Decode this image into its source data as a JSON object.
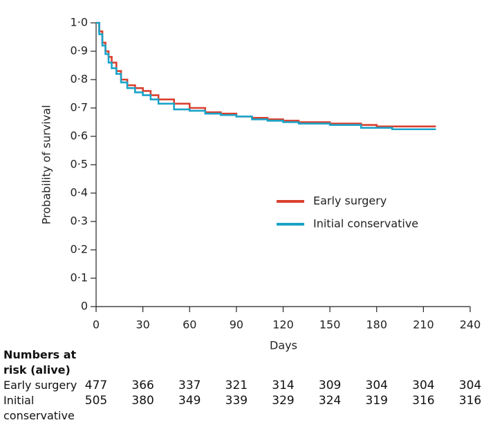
{
  "chart_data": {
    "type": "step",
    "xlabel": "Days",
    "ylabel": "Probability of survival",
    "xlim": [
      0,
      240
    ],
    "xticks": [
      0,
      30,
      60,
      90,
      120,
      150,
      180,
      210,
      240
    ],
    "ylim": [
      0,
      1
    ],
    "yticks": [
      0,
      {
        "value": 0.1,
        "label": "0·1"
      },
      {
        "value": 0.2,
        "label": "0·2"
      },
      {
        "value": 0.3,
        "label": "0·3"
      },
      {
        "value": 0.4,
        "label": "0·4"
      },
      {
        "value": 0.5,
        "label": "0·5"
      },
      {
        "value": 0.6,
        "label": "0·6"
      },
      {
        "value": 0.7,
        "label": "0·7"
      },
      {
        "value": 0.8,
        "label": "0·8"
      },
      {
        "value": 0.9,
        "label": "0·9"
      },
      {
        "value": 1,
        "label": "1·0"
      }
    ],
    "legend": "center right",
    "series": [
      {
        "name": "Early surgery",
        "color": "#d9402f",
        "x": [
          0,
          2,
          4,
          6,
          8,
          10,
          13,
          16,
          20,
          25,
          30,
          35,
          40,
          50,
          60,
          70,
          80,
          90,
          100,
          110,
          120,
          130,
          150,
          170,
          180,
          218
        ],
        "values": [
          1,
          0.97,
          0.93,
          0.9,
          0.88,
          0.86,
          0.83,
          0.8,
          0.78,
          0.77,
          0.76,
          0.745,
          0.73,
          0.715,
          0.7,
          0.685,
          0.68,
          0.67,
          0.665,
          0.66,
          0.655,
          0.65,
          0.645,
          0.64,
          0.635,
          0.635
        ]
      },
      {
        "name": "Initial conservative",
        "color": "#1aa3c8",
        "x": [
          0,
          2,
          4,
          6,
          8,
          10,
          13,
          16,
          20,
          25,
          30,
          35,
          40,
          50,
          60,
          70,
          80,
          90,
          100,
          110,
          120,
          130,
          150,
          170,
          190,
          218
        ],
        "values": [
          1,
          0.96,
          0.92,
          0.89,
          0.86,
          0.84,
          0.82,
          0.79,
          0.77,
          0.755,
          0.745,
          0.73,
          0.715,
          0.695,
          0.69,
          0.68,
          0.675,
          0.67,
          0.66,
          0.655,
          0.65,
          0.645,
          0.64,
          0.63,
          0.625,
          0.625
        ]
      }
    ],
    "risk_table": {
      "title": "Numbers at risk (alive)",
      "rows": [
        {
          "label": "Early surgery",
          "values": [
            477,
            366,
            337,
            321,
            314,
            309,
            304,
            304,
            304
          ]
        },
        {
          "label": "Initial conservative",
          "values": [
            505,
            380,
            349,
            339,
            329,
            324,
            319,
            316,
            316
          ]
        }
      ]
    }
  }
}
